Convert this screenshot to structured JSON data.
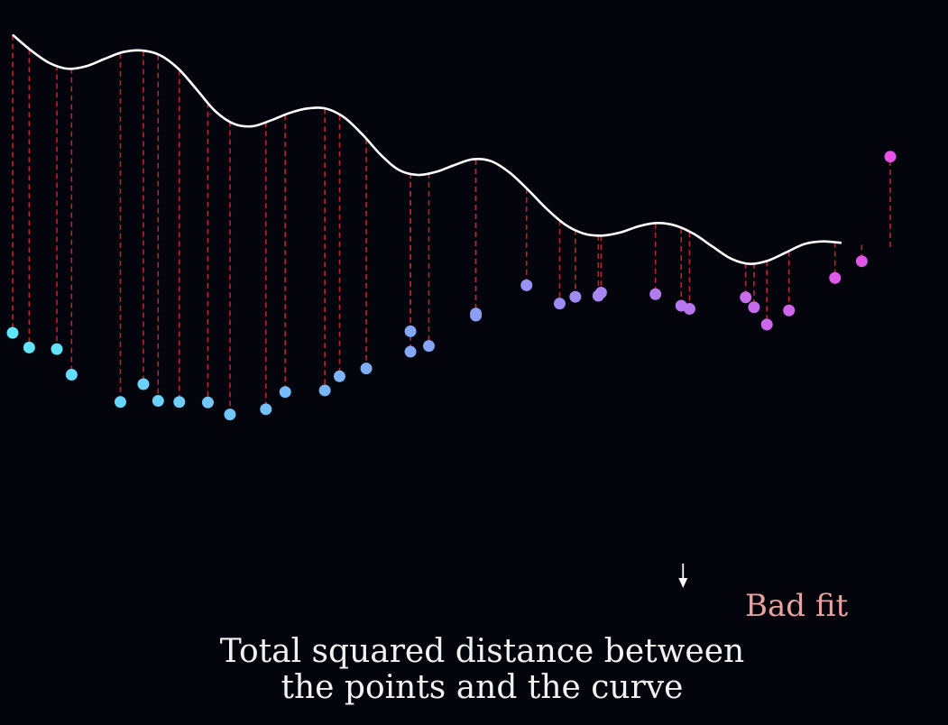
{
  "caption": {
    "line1": "Total squared distance between",
    "line2": "the points and the curve"
  },
  "meter": {
    "label": "Bad fit",
    "level": 0.94,
    "gradient_colors": [
      "#a6e07a",
      "#f2e23a",
      "#f0a030",
      "#e4452a",
      "#a01e1e"
    ],
    "label_color": "#e8a3a0"
  },
  "colors": {
    "curve": "#ffffff",
    "residual": "#b8262a",
    "point_start": "#5ee8fb",
    "point_mid": "#8a9df5",
    "point_end": "#f04ae6"
  },
  "chart_data": {
    "type": "scatter",
    "xlim": [
      0,
      100
    ],
    "ylim": [
      -60,
      40
    ],
    "curve": [
      [
        0,
        36.8
      ],
      [
        2,
        33.8
      ],
      [
        4,
        31.4
      ],
      [
        6,
        30.3
      ],
      [
        8,
        30.8
      ],
      [
        10,
        32.2
      ],
      [
        12,
        33.5
      ],
      [
        14,
        33.8
      ],
      [
        16,
        32.9
      ],
      [
        18,
        30.3
      ],
      [
        20,
        26.3
      ],
      [
        22,
        22.2
      ],
      [
        24,
        19.8
      ],
      [
        26,
        19.3
      ],
      [
        28,
        20.4
      ],
      [
        30,
        21.8
      ],
      [
        32,
        22.7
      ],
      [
        34,
        22.7
      ],
      [
        36,
        21.0
      ],
      [
        38,
        17.7
      ],
      [
        40,
        13.8
      ],
      [
        42,
        10.9
      ],
      [
        44,
        10.0
      ],
      [
        46,
        10.6
      ],
      [
        48,
        11.9
      ],
      [
        50,
        13.0
      ],
      [
        52,
        12.6
      ],
      [
        54,
        10.4
      ],
      [
        56,
        7.1
      ],
      [
        58,
        3.5
      ],
      [
        60,
        0.5
      ],
      [
        62,
        -1.2
      ],
      [
        64,
        -1.6
      ],
      [
        66,
        -1.0
      ],
      [
        68,
        0.2
      ],
      [
        70,
        0.8
      ],
      [
        72,
        0.3
      ],
      [
        74,
        -1.3
      ],
      [
        76,
        -3.7
      ],
      [
        78,
        -6.0
      ],
      [
        80,
        -7.0
      ],
      [
        82,
        -6.4
      ],
      [
        84,
        -4.8
      ],
      [
        86,
        -3.2
      ],
      [
        88,
        -2.7
      ],
      [
        90,
        -3.0
      ]
    ],
    "points": [
      [
        0,
        -20.2
      ],
      [
        1.8,
        -23.0
      ],
      [
        4.8,
        -23.3
      ],
      [
        6.4,
        -28.2
      ],
      [
        11.7,
        -33.4
      ],
      [
        14.2,
        -30.0
      ],
      [
        15.8,
        -33.2
      ],
      [
        18.1,
        -33.4
      ],
      [
        21.2,
        -33.5
      ],
      [
        23.6,
        -35.8
      ],
      [
        27.5,
        -34.8
      ],
      [
        29.6,
        -31.5
      ],
      [
        33.9,
        -31.2
      ],
      [
        35.5,
        -28.5
      ],
      [
        38.4,
        -27.0
      ],
      [
        43.2,
        -19.9
      ],
      [
        43.2,
        -23.8
      ],
      [
        45.2,
        -22.7
      ],
      [
        50.3,
        -16.5
      ],
      [
        50.3,
        -16.9
      ],
      [
        55.8,
        -11.1
      ],
      [
        59.4,
        -14.6
      ],
      [
        61.1,
        -13.3
      ],
      [
        63.6,
        -13.1
      ],
      [
        63.9,
        -12.5
      ],
      [
        69.8,
        -12.8
      ],
      [
        72.6,
        -15.0
      ],
      [
        73.5,
        -15.6
      ],
      [
        79.6,
        -13.4
      ],
      [
        80.5,
        -15.3
      ],
      [
        81.9,
        -18.6
      ],
      [
        84.3,
        -15.9
      ],
      [
        89.3,
        -9.7
      ],
      [
        92.2,
        -6.5
      ],
      [
        95.3,
        13.5
      ]
    ]
  }
}
